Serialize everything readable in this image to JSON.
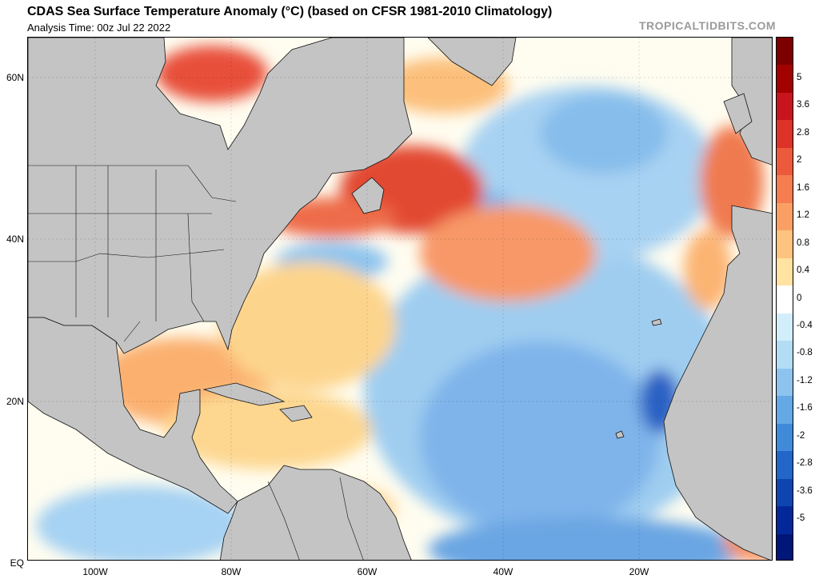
{
  "header": {
    "title": "CDAS Sea Surface Temperature Anomaly (°C) (based on CFSR 1981-2010 Climatology)",
    "analysis_time": "Analysis Time: 00z Jul 22 2022",
    "watermark": "TROPICALTIDBITS.COM"
  },
  "map": {
    "lat_labels": [
      "60N",
      "40N",
      "20N",
      "EQ"
    ],
    "lon_labels": [
      "100W",
      "80W",
      "60W",
      "40W",
      "20W"
    ],
    "land_color": "#c4c4c4",
    "ocean_base_color": "#fffdf0"
  },
  "colorbar": {
    "labels": [
      "5",
      "3.6",
      "2.8",
      "2",
      "1.6",
      "1.2",
      "0.8",
      "0.4",
      "0",
      "-0.4",
      "-0.8",
      "-1.2",
      "-1.6",
      "-2",
      "-2.8",
      "-3.6",
      "-5"
    ],
    "colors": [
      "#7d0000",
      "#a30000",
      "#c8141e",
      "#dc3228",
      "#ec5a3c",
      "#f57d50",
      "#fba064",
      "#fdc37f",
      "#ffe3a0",
      "#ffffff",
      "#d2eefa",
      "#b3dcf5",
      "#8cc4ef",
      "#64a8e6",
      "#3f8ad9",
      "#2166c8",
      "#0e45b0",
      "#04289a",
      "#001678"
    ]
  }
}
